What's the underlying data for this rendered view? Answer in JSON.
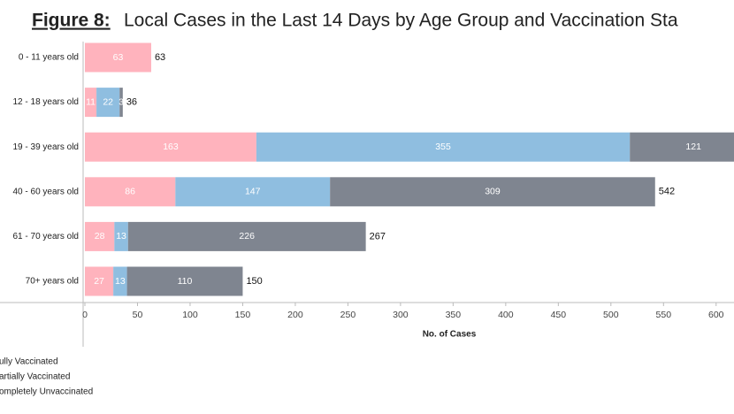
{
  "chart_data": {
    "type": "stacked-barh",
    "title_prefix": "Figure 8:",
    "title": "Local Cases in the Last 14 Days by Age Group and Vaccination Sta",
    "xlabel": "No. of Cases",
    "categories": [
      "0 - 11 years old",
      "12 - 18 years old",
      "19 - 39 years old",
      "40 - 60 years old",
      "61 - 70 years old",
      "70+ years old"
    ],
    "series": [
      {
        "name": "ully Vaccinated",
        "color": "#ffb3bd",
        "values": [
          63,
          11,
          163,
          86,
          28,
          27
        ]
      },
      {
        "name": "artially Vaccinated",
        "color": "#8fbee0",
        "values": [
          null,
          22,
          355,
          147,
          13,
          13
        ]
      },
      {
        "name": "ompletely Unvaccinated",
        "color": "#7f8590",
        "values": [
          null,
          3,
          121,
          309,
          226,
          110
        ]
      }
    ],
    "totals": [
      63,
      36,
      null,
      542,
      267,
      150
    ],
    "xlim": [
      0,
      617
    ],
    "xticks": [
      0,
      50,
      100,
      150,
      200,
      250,
      300,
      350,
      400,
      450,
      500,
      550,
      600
    ]
  }
}
